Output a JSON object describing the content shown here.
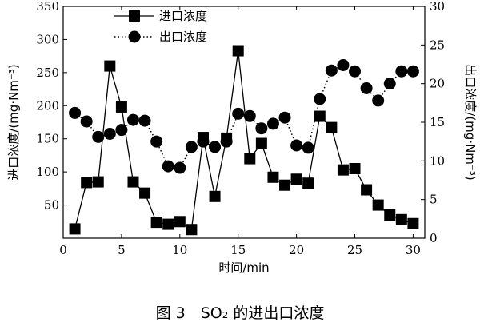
{
  "chart_data": {
    "type": "line",
    "title": "",
    "caption": "图 3　SO₂ 的进出口浓度",
    "xlabel": "时间/min",
    "ylabel_left": "进口浓度/(mg·Nm⁻³)",
    "ylabel_right": "出口浓度/(mg·Nm⁻³)",
    "xlim": [
      0,
      31
    ],
    "ylim_left": [
      0,
      350
    ],
    "ylim_right": [
      0,
      30
    ],
    "x_ticks": [
      0,
      5,
      10,
      15,
      20,
      25,
      30
    ],
    "y_left_ticks": [
      50,
      100,
      150,
      200,
      250,
      300,
      350
    ],
    "y_right_ticks": [
      0,
      5,
      10,
      15,
      20,
      25,
      30
    ],
    "grid": false,
    "legend_position": "top-left",
    "series": [
      {
        "name": "进口浓度",
        "axis": "left",
        "marker": "square",
        "line_style": "solid",
        "x": [
          1,
          2,
          3,
          4,
          5,
          6,
          7,
          8,
          9,
          10,
          11,
          12,
          13,
          14,
          15,
          16,
          17,
          18,
          19,
          20,
          21,
          22,
          23,
          24,
          25,
          26,
          27,
          28,
          29,
          30
        ],
        "values": [
          14,
          84,
          85,
          260,
          198,
          85,
          68,
          24,
          21,
          25,
          13,
          152,
          63,
          151,
          283,
          120,
          143,
          92,
          80,
          89,
          83,
          184,
          167,
          103,
          105,
          73,
          50,
          35,
          28,
          22
        ]
      },
      {
        "name": "出口浓度",
        "axis": "right",
        "marker": "circle",
        "line_style": "dotted",
        "x": [
          1,
          2,
          3,
          4,
          5,
          6,
          7,
          8,
          9,
          10,
          11,
          12,
          13,
          14,
          15,
          16,
          17,
          18,
          19,
          20,
          21,
          22,
          23,
          24,
          25,
          26,
          27,
          28,
          29,
          30
        ],
        "values": [
          16.2,
          15.1,
          13.1,
          13.5,
          14.0,
          15.3,
          15.2,
          12.5,
          9.3,
          9.1,
          11.8,
          12.5,
          11.8,
          12.5,
          16.1,
          15.8,
          14.2,
          14.8,
          15.6,
          12.0,
          11.7,
          18.0,
          21.7,
          22.4,
          21.6,
          19.4,
          17.8,
          20.0,
          21.6,
          21.6
        ]
      }
    ]
  }
}
